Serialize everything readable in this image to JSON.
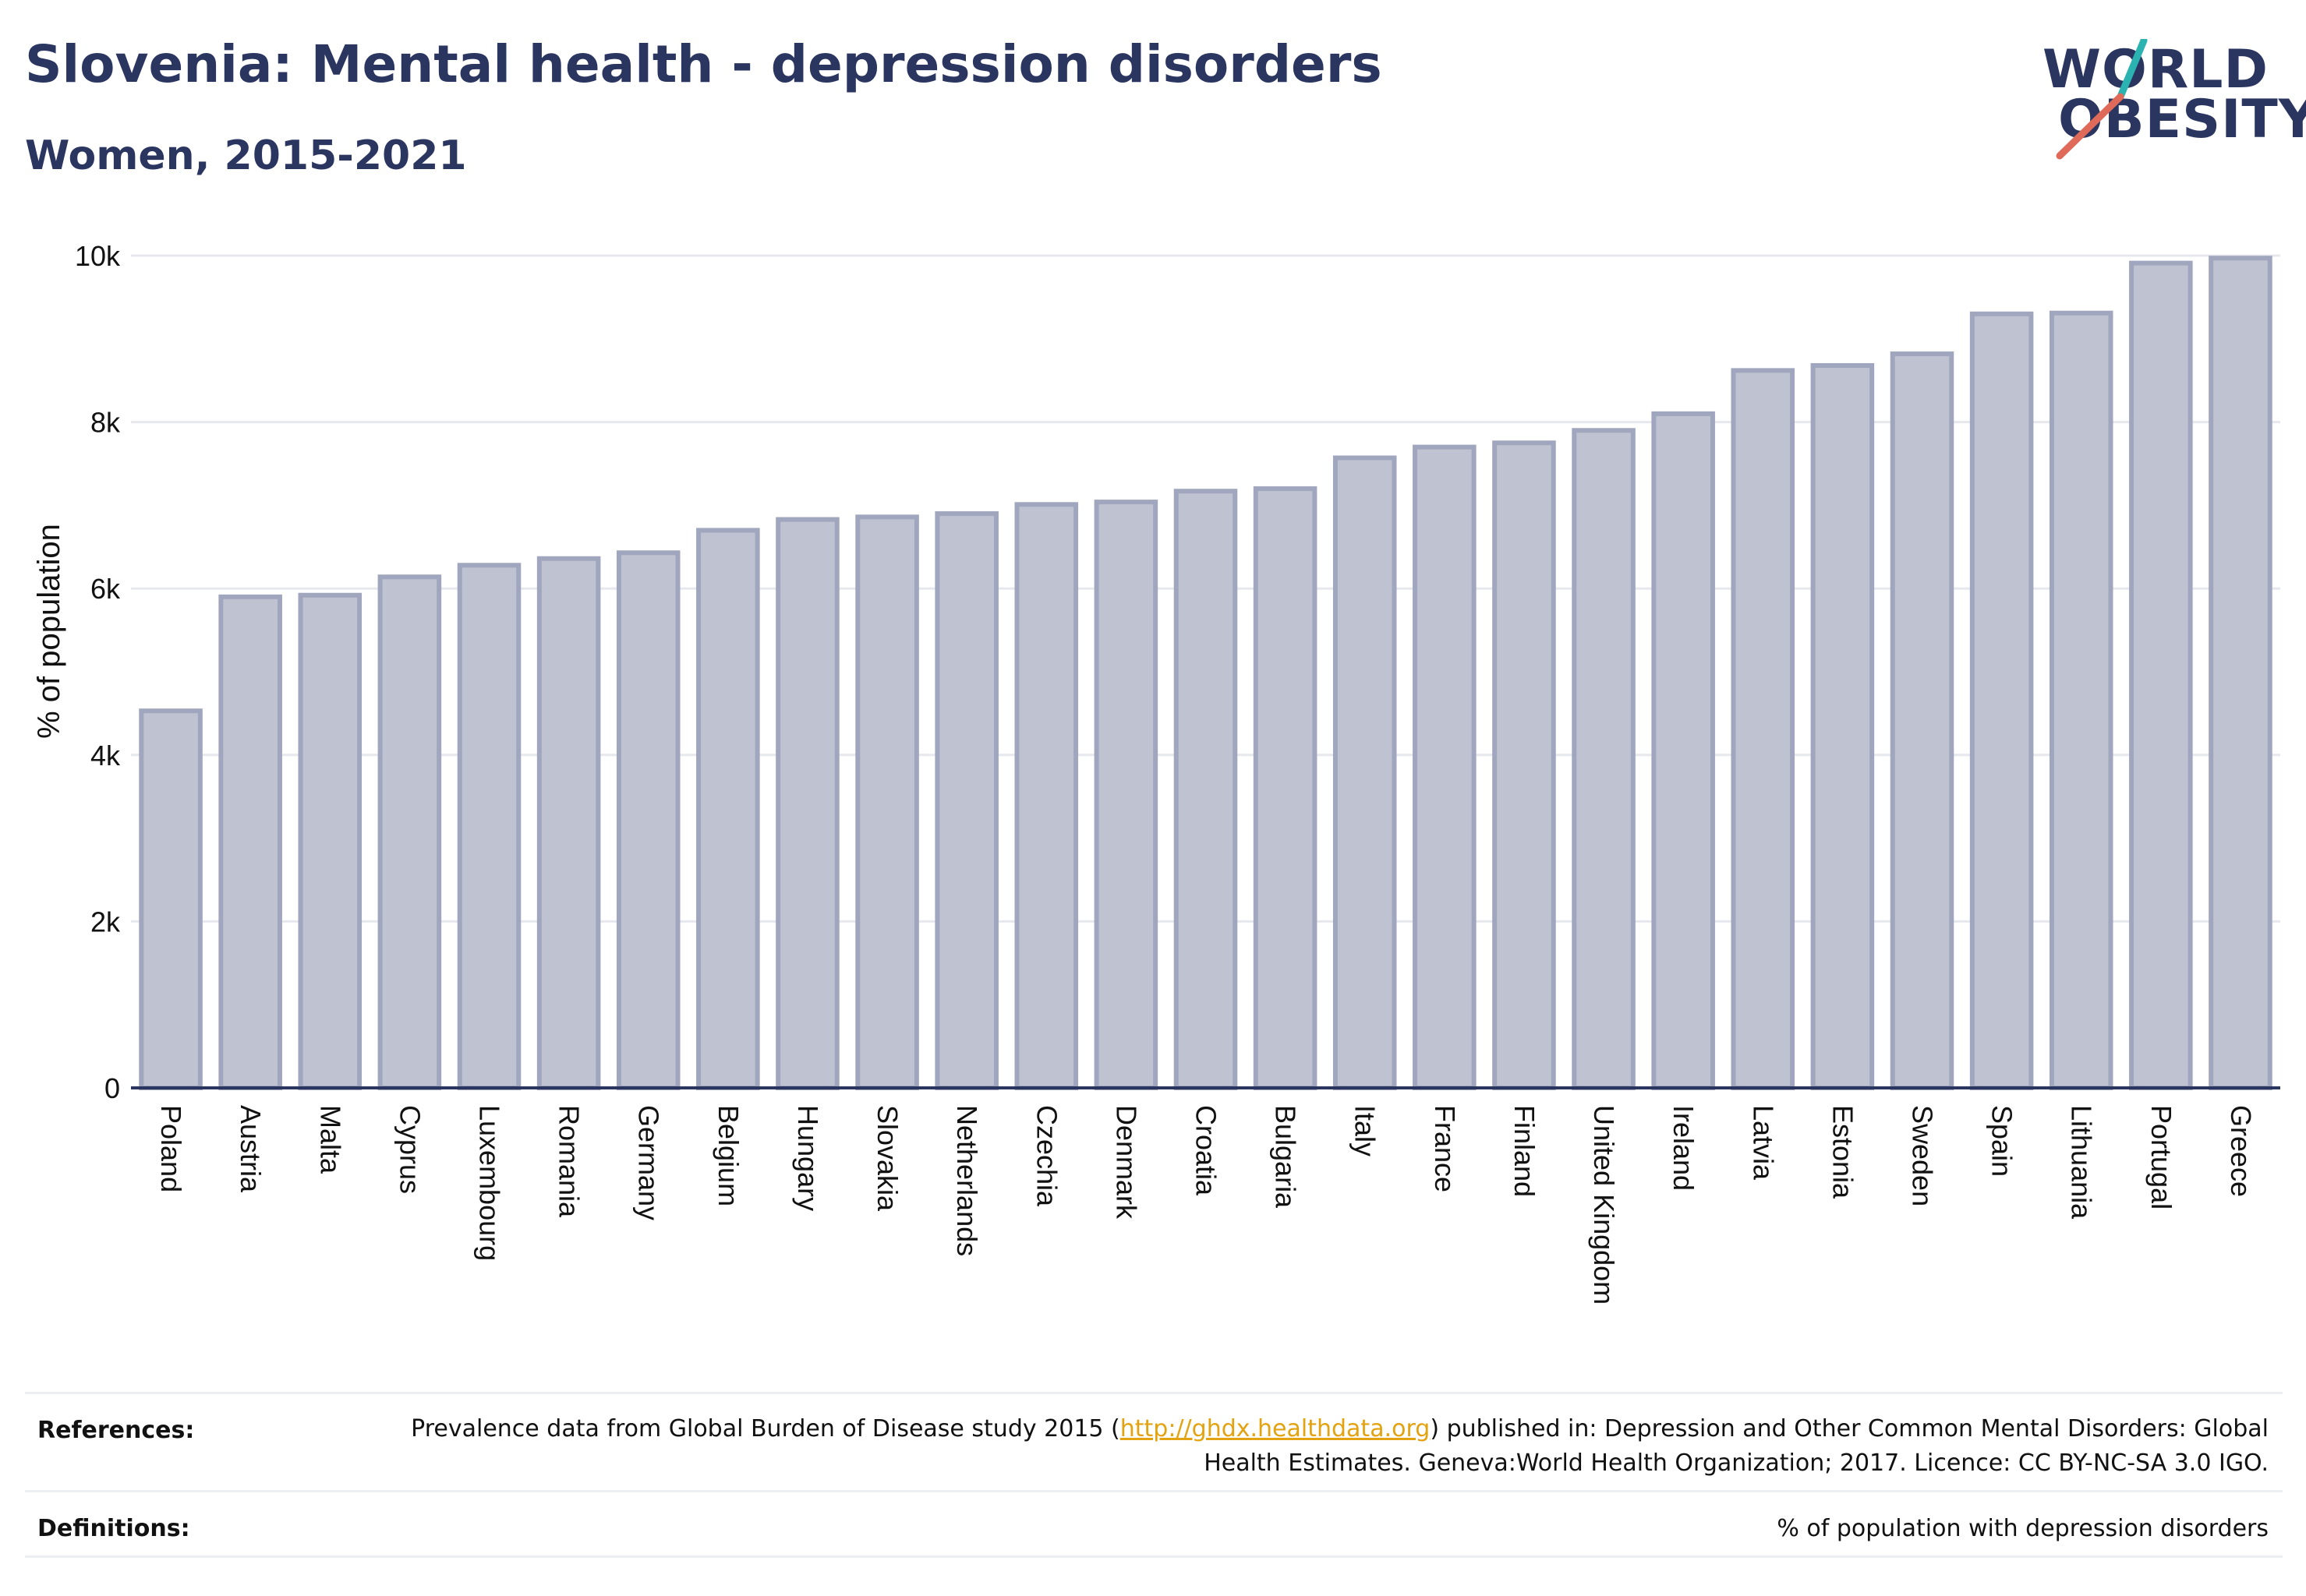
{
  "header": {
    "title": "Slovenia: Mental health - depression disorders",
    "subtitle": "Women, 2015-2021"
  },
  "logo": {
    "line1": "WORLD",
    "line2": "OBESITY",
    "accent_teal": "#2ab3b1",
    "accent_coral": "#e06a5a"
  },
  "colors": {
    "bar_fill": "#bfc3d1",
    "bar_stroke": "#a0a6bd",
    "axis": "#2b3660",
    "grid": "#e6e8ee",
    "text": "#2b3660"
  },
  "chart_data": {
    "type": "bar",
    "title": "",
    "xlabel": "",
    "ylabel": "% of population",
    "ylim": [
      0,
      10000
    ],
    "yticks": [
      0,
      2000,
      4000,
      6000,
      8000,
      10000
    ],
    "ytick_labels": [
      "0",
      "2k",
      "4k",
      "6k",
      "8k",
      "10k"
    ],
    "grid": true,
    "categories": [
      "Poland",
      "Austria",
      "Malta",
      "Cyprus",
      "Luxembourg",
      "Romania",
      "Germany",
      "Belgium",
      "Hungary",
      "Slovakia",
      "Netherlands",
      "Czechia",
      "Denmark",
      "Croatia",
      "Bulgaria",
      "Italy",
      "France",
      "Finland",
      "United Kingdom",
      "Ireland",
      "Latvia",
      "Estonia",
      "Sweden",
      "Spain",
      "Lithuania",
      "Portugal",
      "Greece"
    ],
    "values": [
      4530,
      5900,
      5920,
      6140,
      6280,
      6360,
      6430,
      6700,
      6830,
      6860,
      6900,
      7010,
      7040,
      7170,
      7200,
      7570,
      7700,
      7750,
      7900,
      8100,
      8620,
      8680,
      8820,
      9300,
      9310,
      9910,
      9970
    ]
  },
  "footer": {
    "references_label": "References:",
    "references_text_before": "Prevalence data from Global Burden of Disease study 2015 (",
    "references_link": "http://ghdx.healthdata.org",
    "references_text_after": ") published in: Depression and Other Common Mental Disorders: Global Health Estimates. Geneva:World Health Organization; 2017. Licence: CC BY-NC-SA 3.0 IGO.",
    "definitions_label": "Definitions:",
    "definitions_text": "% of population with depression disorders"
  }
}
